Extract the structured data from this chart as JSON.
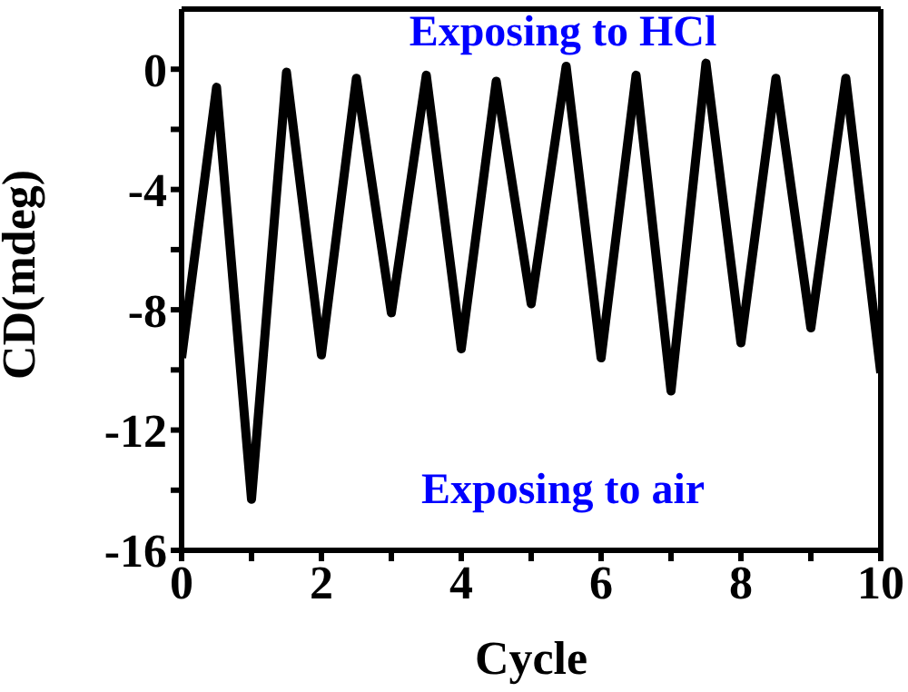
{
  "chart_data": {
    "type": "line",
    "xlabel": "Cycle",
    "ylabel": "CD(mdeg)",
    "x": [
      0,
      0.5,
      1,
      1.5,
      2,
      2.5,
      3,
      3.5,
      4,
      4.5,
      5,
      5.5,
      6,
      6.5,
      7,
      7.5,
      8,
      8.5,
      9,
      9.5,
      10
    ],
    "series": [
      {
        "color": "#000000",
        "values": [
          -9.6,
          -0.6,
          -14.3,
          -0.1,
          -9.5,
          -0.3,
          -8.1,
          -0.2,
          -9.3,
          -0.4,
          -7.8,
          0.1,
          -9.6,
          -0.2,
          -10.7,
          0.2,
          -9.1,
          -0.3,
          -8.6,
          -0.3,
          -10.1
        ]
      }
    ],
    "xlim": [
      0,
      10
    ],
    "xticks": [
      0,
      {
        "value": 1,
        "label": null
      },
      2,
      {
        "value": 3,
        "label": null
      },
      4,
      {
        "value": 5,
        "label": null
      },
      6,
      {
        "value": 7,
        "label": null
      },
      8,
      {
        "value": 9,
        "label": null
      },
      10
    ],
    "ylim": [
      -16,
      2
    ],
    "yticks": [
      -16,
      {
        "value": -14,
        "label": null
      },
      -12,
      {
        "value": -10,
        "label": null
      },
      -8,
      {
        "value": -6,
        "label": null
      },
      -4,
      {
        "value": -2,
        "label": null
      },
      0
    ],
    "annotations": [
      "Exposing to HCl",
      "Exposing to air"
    ],
    "grid": false,
    "legend": false,
    "marker": "none",
    "line_style": "solid"
  }
}
